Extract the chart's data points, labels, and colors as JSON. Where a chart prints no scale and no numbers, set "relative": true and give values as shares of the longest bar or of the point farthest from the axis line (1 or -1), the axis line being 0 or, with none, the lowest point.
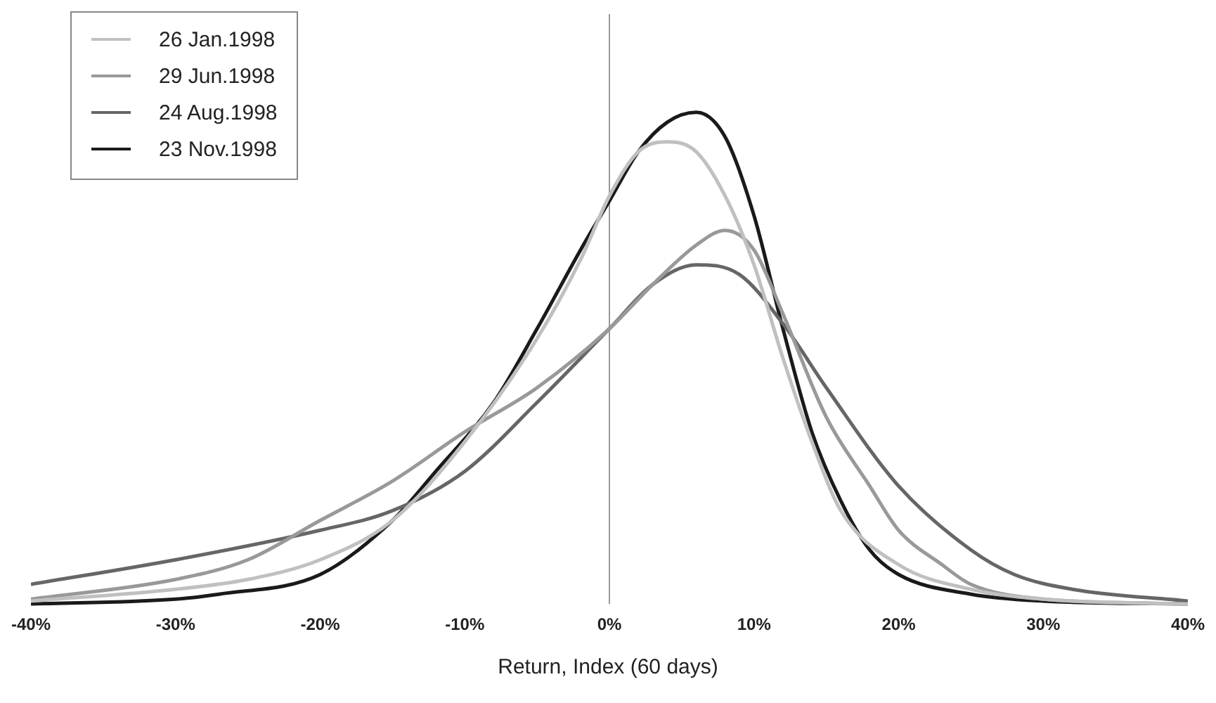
{
  "chart_data": {
    "type": "line",
    "relative": true,
    "xlabel": "Return, Index (60 days)",
    "xlim": [
      -40,
      40
    ],
    "xticks": [
      {
        "value": -40,
        "label": "-40%"
      },
      {
        "value": -30,
        "label": "-30%"
      },
      {
        "value": -20,
        "label": "-20%"
      },
      {
        "value": -10,
        "label": "-10%"
      },
      {
        "value": 0,
        "label": "0%"
      },
      {
        "value": 10,
        "label": "10%"
      },
      {
        "value": 20,
        "label": "20%"
      },
      {
        "value": 30,
        "label": "30%"
      },
      {
        "value": 40,
        "label": "40%"
      }
    ],
    "legend": "top left",
    "grid": false,
    "marker": "none",
    "line_style": "solid",
    "ref_lines": [
      {
        "axis": "x",
        "value": 0,
        "color": "#999999"
      }
    ],
    "series": [
      {
        "name": "26 Jan.1998",
        "color": "#c0c0c0",
        "x": [
          -40,
          -30,
          -25,
          -20,
          -15,
          -10,
          -5,
          -2,
          0,
          2,
          4,
          6,
          8,
          10,
          12,
          14,
          16,
          20,
          25,
          30,
          40
        ],
        "values": [
          0.006,
          0.03,
          0.05,
          0.09,
          0.17,
          0.33,
          0.54,
          0.7,
          0.83,
          0.92,
          0.94,
          0.92,
          0.83,
          0.69,
          0.5,
          0.33,
          0.19,
          0.08,
          0.03,
          0.01,
          0
        ]
      },
      {
        "name": "29 Jun.1998",
        "color": "#999999",
        "x": [
          -40,
          -30,
          -25,
          -20,
          -15,
          -10,
          -5,
          0,
          3,
          6,
          8,
          10,
          12,
          15,
          18,
          20,
          23,
          25,
          30,
          40
        ],
        "values": [
          0.01,
          0.05,
          0.09,
          0.17,
          0.25,
          0.35,
          0.44,
          0.56,
          0.65,
          0.73,
          0.76,
          0.72,
          0.59,
          0.38,
          0.24,
          0.15,
          0.08,
          0.04,
          0.01,
          0
        ]
      },
      {
        "name": "24 Aug.1998",
        "color": "#666666",
        "x": [
          -40,
          -30,
          -20,
          -15,
          -10,
          -5,
          0,
          3,
          6,
          9,
          12,
          15,
          20,
          25,
          28,
          32,
          40
        ],
        "values": [
          0.04,
          0.09,
          0.15,
          0.19,
          0.27,
          0.41,
          0.56,
          0.65,
          0.69,
          0.67,
          0.57,
          0.44,
          0.24,
          0.11,
          0.06,
          0.03,
          0.006
        ]
      },
      {
        "name": "23 Nov.1998",
        "color": "#1a1a1a",
        "x": [
          -40,
          -30,
          -27,
          -20,
          -15,
          -12,
          -8,
          -5,
          -2,
          0,
          2,
          4,
          6,
          8,
          10,
          12,
          14,
          16,
          18,
          20,
          25,
          30,
          40
        ],
        "values": [
          0,
          0.01,
          0.02,
          0.06,
          0.17,
          0.27,
          0.41,
          0.56,
          0.72,
          0.82,
          0.92,
          0.98,
          1,
          0.95,
          0.79,
          0.56,
          0.35,
          0.21,
          0.11,
          0.06,
          0.02,
          0.006,
          0
        ]
      }
    ]
  }
}
